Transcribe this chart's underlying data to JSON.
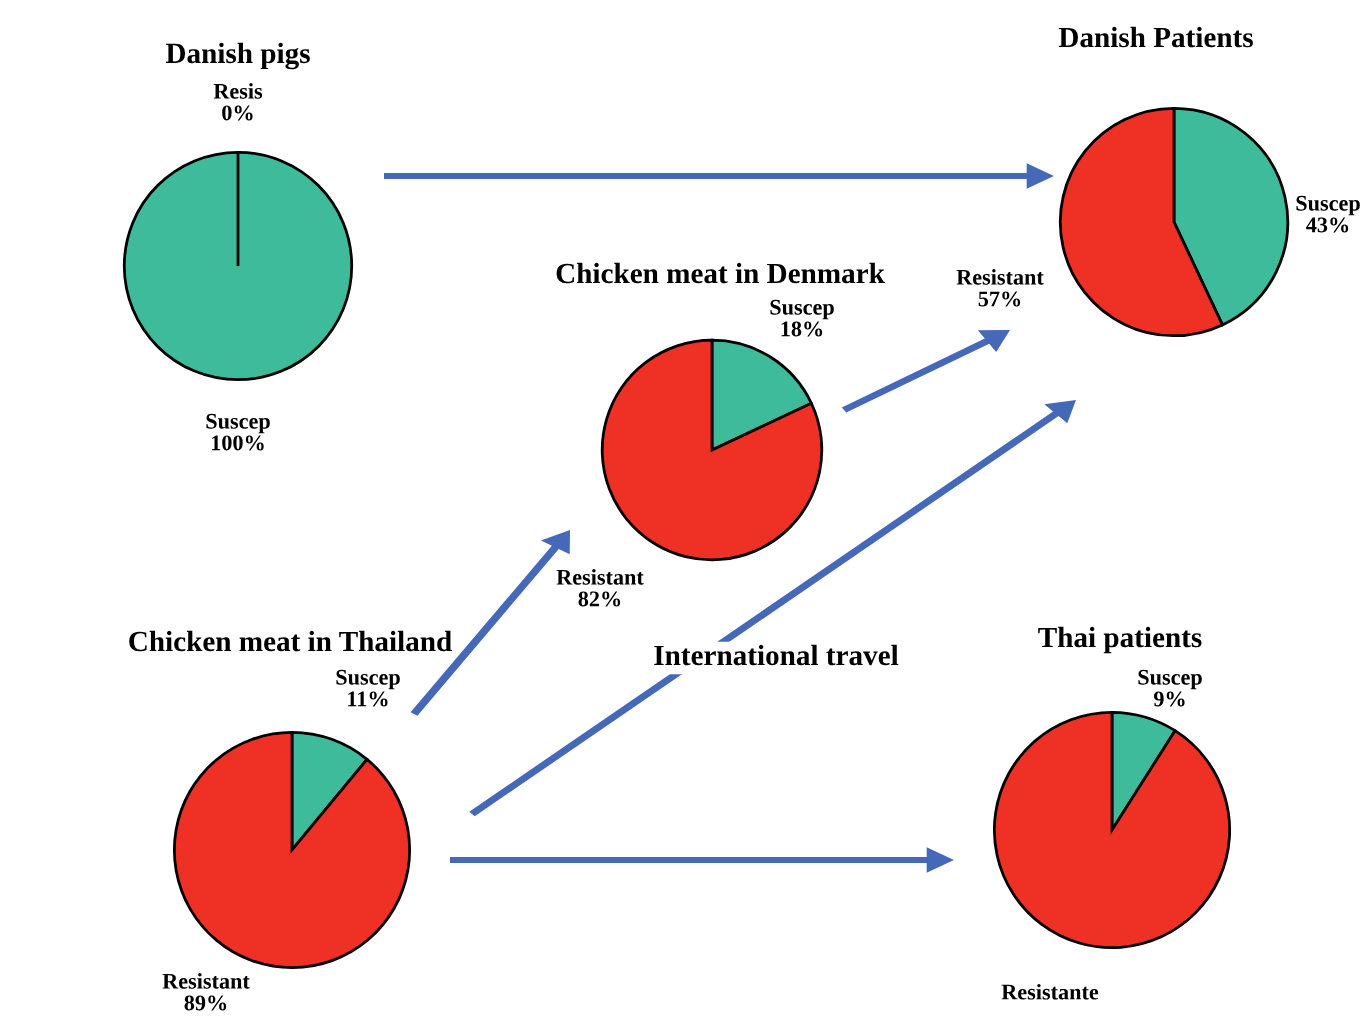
{
  "chart_data": [
    {
      "type": "pie",
      "title": "Danish pigs",
      "categories": [
        "Suscep",
        "Resis"
      ],
      "values": [
        100,
        0
      ],
      "value_labels": [
        "100%",
        "0%"
      ],
      "colors": [
        "#3dbb9a",
        "#ee3124"
      ]
    },
    {
      "type": "pie",
      "title": "Chicken meat in Denmark",
      "categories": [
        "Suscep",
        "Resistant"
      ],
      "values": [
        18,
        82
      ],
      "value_labels": [
        "18%",
        "82%"
      ],
      "colors": [
        "#3dbb9a",
        "#ee3124"
      ]
    },
    {
      "type": "pie",
      "title": "Chicken meat in Thailand",
      "categories": [
        "Suscep",
        "Resistant"
      ],
      "values": [
        11,
        89
      ],
      "value_labels": [
        "11%",
        "89%"
      ],
      "colors": [
        "#3dbb9a",
        "#ee3124"
      ],
      "annotations": [
        "International travel"
      ]
    },
    {
      "type": "pie",
      "title": "Danish Patients",
      "categories": [
        "Suscep",
        "Resistant"
      ],
      "values": [
        43,
        57
      ],
      "value_labels": [
        "43%",
        "57%"
      ],
      "colors": [
        "#3dbb9a",
        "#ee3124"
      ]
    },
    {
      "type": "pie",
      "title": "Thai patients",
      "categories": [
        "Suscep",
        "Resistante"
      ],
      "values": [
        9,
        91
      ],
      "value_labels": [
        "9%",
        null
      ],
      "colors": [
        "#3dbb9a",
        "#ee3124"
      ]
    }
  ]
}
